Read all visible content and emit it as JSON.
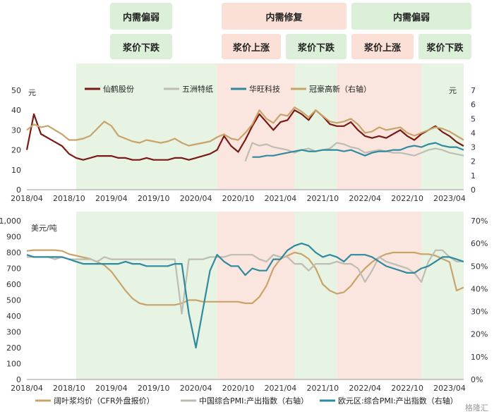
{
  "colors": {
    "maroon": "#7b1a14",
    "gray": "#bdbdb3",
    "teal": "#2f8aa0",
    "gold": "#c8a46a",
    "green_band": "#e7f3e3",
    "red_band": "#fbe6df"
  },
  "phases": {
    "demand_weak_1": "内需偏弱",
    "demand_recover": "内需修复",
    "demand_weak_2": "内需偏弱",
    "price_down_1": "浆价下跌",
    "price_up_1": "浆价上涨",
    "price_down_2": "浆价下跌",
    "price_up_2": "浆价上涨",
    "price_down_3": "浆价下跌"
  },
  "x_ticks": [
    "2018/04",
    "2018/10",
    "2019/04",
    "2019/10",
    "2020/04",
    "2020/10",
    "2021/04",
    "2021/10",
    "2022/04",
    "2022/10",
    "2023/04"
  ],
  "watermark": "格隆汇",
  "chart_data": [
    {
      "type": "line",
      "title": "",
      "ylabel": "元",
      "ylabel_right": "元",
      "ylim": [
        0,
        50
      ],
      "ylim_right": [
        0,
        7
      ],
      "y_ticks": [
        "0",
        "10",
        "20",
        "30",
        "40",
        "50"
      ],
      "y_ticks_right": [
        "0",
        "1",
        "2",
        "3",
        "4",
        "5",
        "6",
        "7"
      ],
      "x_start": "2018/04",
      "x_end": "2023/06",
      "bands": [
        {
          "from": "2018/11",
          "to": "2020/07",
          "color": "green"
        },
        {
          "from": "2020/07",
          "to": "2021/06",
          "color": "red"
        },
        {
          "from": "2021/06",
          "to": "2021/12",
          "color": "green"
        },
        {
          "from": "2021/12",
          "to": "2022/12",
          "color": "red"
        },
        {
          "from": "2022/12",
          "to": "2023/06",
          "color": "green"
        }
      ],
      "series": [
        {
          "name": "仙鹤股份",
          "axis": "left",
          "color": "#7b1a14",
          "x": [
            "2018/04",
            "2018/05",
            "2018/06",
            "2018/07",
            "2018/08",
            "2018/09",
            "2018/10",
            "2018/11",
            "2018/12",
            "2019/01",
            "2019/02",
            "2019/03",
            "2019/04",
            "2019/05",
            "2019/06",
            "2019/07",
            "2019/08",
            "2019/09",
            "2019/10",
            "2019/11",
            "2019/12",
            "2020/01",
            "2020/02",
            "2020/03",
            "2020/04",
            "2020/05",
            "2020/06",
            "2020/07",
            "2020/08",
            "2020/09",
            "2020/10",
            "2020/11",
            "2020/12",
            "2021/01",
            "2021/02",
            "2021/03",
            "2021/04",
            "2021/05",
            "2021/06",
            "2021/07",
            "2021/08",
            "2021/09",
            "2021/10",
            "2021/11",
            "2021/12",
            "2022/01",
            "2022/02",
            "2022/03",
            "2022/04",
            "2022/05",
            "2022/06",
            "2022/07",
            "2022/08",
            "2022/09",
            "2022/10",
            "2022/11",
            "2022/12",
            "2023/01",
            "2023/02",
            "2023/03",
            "2023/04",
            "2023/05",
            "2023/06"
          ],
          "y": [
            20,
            38,
            28,
            26,
            24,
            22,
            18,
            16,
            15,
            16,
            17,
            17,
            17,
            16,
            16,
            15,
            15,
            16,
            15,
            15,
            15,
            16,
            16,
            15,
            16,
            17,
            18,
            20,
            27,
            22,
            19,
            25,
            32,
            38,
            34,
            30,
            34,
            35,
            40,
            38,
            35,
            40,
            37,
            33,
            32,
            32,
            34,
            30,
            27,
            26,
            27,
            26,
            28,
            30,
            27,
            25,
            28,
            30,
            32,
            29,
            27,
            24,
            22
          ]
        },
        {
          "name": "五洲特纸",
          "axis": "right",
          "color": "#bdbdb3",
          "x": [
            "2020/11",
            "2020/12",
            "2021/01",
            "2021/02",
            "2021/03",
            "2021/04",
            "2021/05",
            "2021/06",
            "2021/07",
            "2021/08",
            "2021/09",
            "2021/10",
            "2021/11",
            "2021/12",
            "2022/01",
            "2022/02",
            "2022/03",
            "2022/04",
            "2022/05",
            "2022/06",
            "2022/07",
            "2022/08",
            "2022/09",
            "2022/10",
            "2022/11",
            "2022/12",
            "2023/01",
            "2023/02",
            "2023/03",
            "2023/04",
            "2023/05",
            "2023/06"
          ],
          "y": [
            2.0,
            3.3,
            3.1,
            3.2,
            3.0,
            2.9,
            2.8,
            2.6,
            2.8,
            2.9,
            2.7,
            2.8,
            2.9,
            3.3,
            3.2,
            3.0,
            2.9,
            2.6,
            2.7,
            2.8,
            2.7,
            2.6,
            2.6,
            2.5,
            2.4,
            2.6,
            2.8,
            2.9,
            2.8,
            2.6,
            2.5,
            2.4
          ]
        },
        {
          "name": "华旺科技",
          "axis": "right",
          "color": "#2f8aa0",
          "x": [
            "2020/12",
            "2021/01",
            "2021/02",
            "2021/03",
            "2021/04",
            "2021/05",
            "2021/06",
            "2021/07",
            "2021/08",
            "2021/09",
            "2021/10",
            "2021/11",
            "2021/12",
            "2022/01",
            "2022/02",
            "2022/03",
            "2022/04",
            "2022/05",
            "2022/06",
            "2022/07",
            "2022/08",
            "2022/09",
            "2022/10",
            "2022/11",
            "2022/12",
            "2023/01",
            "2023/02",
            "2023/03",
            "2023/04",
            "2023/05",
            "2023/06"
          ],
          "y": [
            2.3,
            2.3,
            2.4,
            2.4,
            2.5,
            2.6,
            2.7,
            2.8,
            2.7,
            2.7,
            2.8,
            2.8,
            2.8,
            2.7,
            2.8,
            2.6,
            2.4,
            2.6,
            2.7,
            2.7,
            2.8,
            2.8,
            3.0,
            3.1,
            3.0,
            3.2,
            3.3,
            3.1,
            3.0,
            3.0,
            2.8
          ]
        },
        {
          "name": "冠豪高新（右轴）",
          "axis": "right",
          "color": "#c8a46a",
          "x": [
            "2018/04",
            "2018/05",
            "2018/06",
            "2018/07",
            "2018/08",
            "2018/09",
            "2018/10",
            "2018/11",
            "2018/12",
            "2019/01",
            "2019/02",
            "2019/03",
            "2019/04",
            "2019/05",
            "2019/06",
            "2019/07",
            "2019/08",
            "2019/09",
            "2019/10",
            "2019/11",
            "2019/12",
            "2020/01",
            "2020/02",
            "2020/03",
            "2020/04",
            "2020/05",
            "2020/06",
            "2020/07",
            "2020/08",
            "2020/09",
            "2020/10",
            "2020/11",
            "2020/12",
            "2021/01",
            "2021/02",
            "2021/03",
            "2021/04",
            "2021/05",
            "2021/06",
            "2021/07",
            "2021/08",
            "2021/09",
            "2021/10",
            "2021/11",
            "2021/12",
            "2022/01",
            "2022/02",
            "2022/03",
            "2022/04",
            "2022/05",
            "2022/06",
            "2022/07",
            "2022/08",
            "2022/09",
            "2022/10",
            "2022/11",
            "2022/12",
            "2023/01",
            "2023/02",
            "2023/03",
            "2023/04",
            "2023/05",
            "2023/06"
          ],
          "y": [
            4.2,
            4.6,
            4.4,
            4.5,
            4.2,
            3.9,
            3.5,
            3.5,
            3.6,
            3.8,
            4.3,
            4.8,
            4.5,
            3.8,
            3.6,
            3.4,
            3.3,
            3.5,
            3.4,
            3.3,
            3.4,
            3.6,
            3.3,
            3.1,
            3.2,
            3.3,
            3.4,
            3.7,
            3.9,
            3.6,
            3.5,
            4.0,
            4.6,
            5.6,
            5.0,
            4.7,
            5.3,
            5.2,
            5.8,
            5.5,
            5.1,
            5.6,
            5.2,
            4.8,
            4.7,
            4.8,
            5.0,
            4.6,
            4.0,
            4.1,
            4.4,
            4.2,
            4.3,
            4.4,
            4.0,
            3.8,
            4.0,
            4.2,
            4.4,
            4.3,
            4.1,
            3.8,
            3.5
          ]
        }
      ]
    },
    {
      "type": "line",
      "title": "",
      "ylabel": "美元/吨",
      "ylim": [
        0,
        1000
      ],
      "ylim_right": [
        0,
        70
      ],
      "y_ticks": [
        "0",
        "100",
        "200",
        "300",
        "400",
        "500",
        "600",
        "700",
        "800",
        "900",
        "1,000"
      ],
      "y_ticks_right": [
        "0%",
        "10%",
        "20%",
        "30%",
        "40%",
        "50%",
        "60%",
        "70%"
      ],
      "x_start": "2018/04",
      "x_end": "2023/06",
      "series": [
        {
          "name": "阔叶浆均价（CFR外盘报价）",
          "axis": "left",
          "color": "#c8a46a",
          "x": [
            "2018/04",
            "2018/05",
            "2018/06",
            "2018/07",
            "2018/08",
            "2018/09",
            "2018/10",
            "2018/11",
            "2018/12",
            "2019/01",
            "2019/02",
            "2019/03",
            "2019/04",
            "2019/05",
            "2019/06",
            "2019/07",
            "2019/08",
            "2019/09",
            "2019/10",
            "2019/11",
            "2019/12",
            "2020/01",
            "2020/02",
            "2020/03",
            "2020/04",
            "2020/05",
            "2020/06",
            "2020/07",
            "2020/08",
            "2020/09",
            "2020/10",
            "2020/11",
            "2020/12",
            "2021/01",
            "2021/02",
            "2021/03",
            "2021/04",
            "2021/05",
            "2021/06",
            "2021/07",
            "2021/08",
            "2021/09",
            "2021/10",
            "2021/11",
            "2021/12",
            "2022/01",
            "2022/02",
            "2022/03",
            "2022/04",
            "2022/05",
            "2022/06",
            "2022/07",
            "2022/08",
            "2022/09",
            "2022/10",
            "2022/11",
            "2022/12",
            "2023/01",
            "2023/02",
            "2023/03",
            "2023/04",
            "2023/05",
            "2023/06"
          ],
          "y": [
            810,
            815,
            815,
            815,
            815,
            810,
            790,
            780,
            770,
            760,
            740,
            720,
            680,
            620,
            560,
            510,
            480,
            470,
            470,
            470,
            470,
            470,
            480,
            500,
            500,
            490,
            490,
            490,
            490,
            490,
            490,
            480,
            480,
            520,
            590,
            700,
            760,
            780,
            800,
            790,
            760,
            700,
            600,
            560,
            540,
            550,
            590,
            650,
            700,
            740,
            770,
            790,
            800,
            800,
            800,
            800,
            790,
            790,
            780,
            760,
            740,
            560,
            580
          ]
        },
        {
          "name": "中国综合PMI:产出指数（右轴）",
          "axis": "right",
          "color": "#bdbdb3",
          "x": [
            "2018/04",
            "2018/05",
            "2018/06",
            "2018/07",
            "2018/08",
            "2018/09",
            "2018/10",
            "2018/11",
            "2018/12",
            "2019/01",
            "2019/02",
            "2019/03",
            "2019/04",
            "2019/05",
            "2019/06",
            "2019/07",
            "2019/08",
            "2019/09",
            "2019/10",
            "2019/11",
            "2019/12",
            "2020/01",
            "2020/02",
            "2020/03",
            "2020/04",
            "2020/05",
            "2020/06",
            "2020/07",
            "2020/08",
            "2020/09",
            "2020/10",
            "2020/11",
            "2020/12",
            "2021/01",
            "2021/02",
            "2021/03",
            "2021/04",
            "2021/05",
            "2021/06",
            "2021/07",
            "2021/08",
            "2021/09",
            "2021/10",
            "2021/11",
            "2021/12",
            "2022/01",
            "2022/02",
            "2022/03",
            "2022/04",
            "2022/05",
            "2022/06",
            "2022/07",
            "2022/08",
            "2022/09",
            "2022/10",
            "2022/11",
            "2022/12",
            "2023/01",
            "2023/02",
            "2023/03",
            "2023/04",
            "2023/05",
            "2023/06"
          ],
          "y": [
            54,
            54,
            54,
            54,
            53,
            54,
            53,
            53,
            53,
            53,
            52,
            54,
            53,
            53,
            53,
            53,
            53,
            53,
            53,
            53,
            53,
            53,
            29,
            53,
            53,
            53,
            54,
            54,
            54,
            55,
            55,
            55,
            55,
            53,
            52,
            55,
            54,
            54,
            51,
            51,
            48,
            51,
            51,
            51,
            52,
            51,
            51,
            49,
            43,
            48,
            54,
            52,
            51,
            50,
            49,
            47,
            43,
            52,
            57,
            57,
            54,
            52,
            52
          ]
        },
        {
          "name": "欧元区:综合PMI:产出指数（右轴）",
          "axis": "right",
          "color": "#2f8aa0",
          "x": [
            "2018/04",
            "2018/05",
            "2018/06",
            "2018/07",
            "2018/08",
            "2018/09",
            "2018/10",
            "2018/11",
            "2018/12",
            "2019/01",
            "2019/02",
            "2019/03",
            "2019/04",
            "2019/05",
            "2019/06",
            "2019/07",
            "2019/08",
            "2019/09",
            "2019/10",
            "2019/11",
            "2019/12",
            "2020/01",
            "2020/02",
            "2020/03",
            "2020/04",
            "2020/05",
            "2020/06",
            "2020/07",
            "2020/08",
            "2020/09",
            "2020/10",
            "2020/11",
            "2020/12",
            "2021/01",
            "2021/02",
            "2021/03",
            "2021/04",
            "2021/05",
            "2021/06",
            "2021/07",
            "2021/08",
            "2021/09",
            "2021/10",
            "2021/11",
            "2021/12",
            "2022/01",
            "2022/02",
            "2022/03",
            "2022/04",
            "2022/05",
            "2022/06",
            "2022/07",
            "2022/08",
            "2022/09",
            "2022/10",
            "2022/11",
            "2022/12",
            "2023/01",
            "2023/02",
            "2023/03",
            "2023/04",
            "2023/05",
            "2023/06"
          ],
          "y": [
            55,
            54,
            54,
            54,
            54,
            54,
            53,
            52,
            51,
            51,
            51,
            51,
            51,
            51,
            52,
            51,
            51,
            50,
            50,
            50,
            50,
            51,
            51,
            29,
            14,
            31,
            48,
            55,
            52,
            50,
            50,
            46,
            49,
            48,
            48,
            53,
            53,
            57,
            59,
            60,
            59,
            56,
            54,
            55,
            54,
            52,
            55,
            55,
            55,
            54,
            52,
            50,
            49,
            48,
            47,
            47,
            49,
            50,
            52,
            54,
            54,
            53,
            52
          ]
        }
      ]
    }
  ]
}
